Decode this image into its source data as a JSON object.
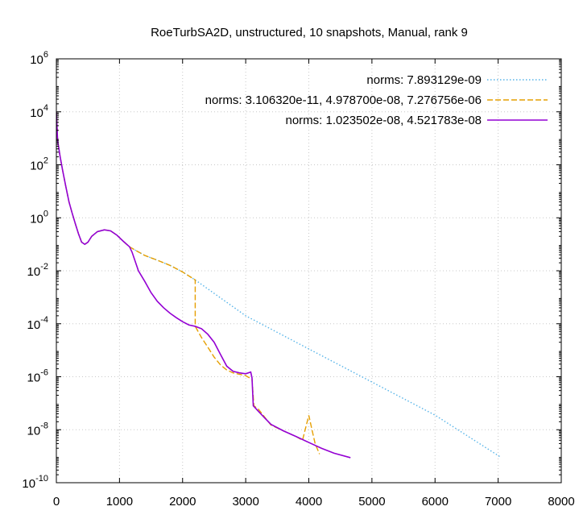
{
  "chart_data": {
    "type": "line",
    "title": "RoeTurbSA2D, unstructured, 10 snapshots, Manual, rank 9",
    "xlabel": "",
    "ylabel": "",
    "xlim": [
      0,
      8000
    ],
    "ylim_exponents": [
      -10,
      6
    ],
    "y_scale": "log",
    "grid": true,
    "legend_position": "top-right",
    "x_ticks": [
      "0",
      "1000",
      "2000",
      "3000",
      "4000",
      "5000",
      "6000",
      "7000",
      "8000"
    ],
    "y_ticks": [
      {
        "base": "10",
        "exp": "6"
      },
      {
        "base": "10",
        "exp": "4"
      },
      {
        "base": "10",
        "exp": "2"
      },
      {
        "base": "10",
        "exp": "0"
      },
      {
        "base": "10",
        "exp": "-2"
      },
      {
        "base": "10",
        "exp": "-4"
      },
      {
        "base": "10",
        "exp": "-6"
      },
      {
        "base": "10",
        "exp": "-8"
      },
      {
        "base": "10",
        "exp": "-10"
      }
    ],
    "series": [
      {
        "name": "norms: 7.893129e-09",
        "color": "#56b4e9",
        "style": "dotted",
        "points": [
          [
            0,
            10000
          ],
          [
            20,
            800
          ],
          [
            60,
            200
          ],
          [
            100,
            60
          ],
          [
            150,
            15
          ],
          [
            200,
            4
          ],
          [
            250,
            1.5
          ],
          [
            300,
            0.6
          ],
          [
            350,
            0.25
          ],
          [
            400,
            0.12
          ],
          [
            450,
            0.1
          ],
          [
            500,
            0.12
          ],
          [
            560,
            0.2
          ],
          [
            650,
            0.3
          ],
          [
            760,
            0.35
          ],
          [
            860,
            0.32
          ],
          [
            960,
            0.22
          ],
          [
            1060,
            0.13
          ],
          [
            1160,
            0.08
          ],
          [
            1250,
            0.06
          ],
          [
            1400,
            0.038
          ],
          [
            1600,
            0.025
          ],
          [
            1800,
            0.016
          ],
          [
            2000,
            0.009
          ],
          [
            2200,
            0.0045
          ],
          [
            3000,
            0.0002
          ],
          [
            4000,
            1.12e-05
          ],
          [
            5000,
            6.3e-07
          ],
          [
            6000,
            3.55e-08
          ],
          [
            7050,
            8.9e-10
          ]
        ]
      },
      {
        "name": "norms: 3.106320e-11, 4.978700e-08, 7.276756e-06",
        "color": "#e69f00",
        "style": "dashed",
        "points": [
          [
            0,
            10000
          ],
          [
            20,
            800
          ],
          [
            60,
            200
          ],
          [
            100,
            60
          ],
          [
            150,
            15
          ],
          [
            200,
            4
          ],
          [
            250,
            1.5
          ],
          [
            300,
            0.6
          ],
          [
            350,
            0.25
          ],
          [
            400,
            0.12
          ],
          [
            450,
            0.1
          ],
          [
            500,
            0.12
          ],
          [
            560,
            0.2
          ],
          [
            650,
            0.3
          ],
          [
            760,
            0.35
          ],
          [
            860,
            0.32
          ],
          [
            960,
            0.22
          ],
          [
            1060,
            0.13
          ],
          [
            1160,
            0.08
          ],
          [
            1250,
            0.06
          ],
          [
            1400,
            0.038
          ],
          [
            1600,
            0.025
          ],
          [
            1800,
            0.016
          ],
          [
            2000,
            0.009
          ],
          [
            2200,
            0.0045
          ],
          [
            2200,
            8e-05
          ],
          [
            2300,
            3e-05
          ],
          [
            2400,
            1.3e-05
          ],
          [
            2500,
            5.5e-06
          ],
          [
            2600,
            2.8e-06
          ],
          [
            2700,
            1.8e-06
          ],
          [
            2800,
            1.4e-06
          ],
          [
            3000,
            1.1e-06
          ],
          [
            3100,
            8e-07
          ],
          [
            3130,
            8e-08
          ],
          [
            3200,
            6e-08
          ],
          [
            3300,
            3e-08
          ],
          [
            3400,
            1.5e-08
          ],
          [
            3600,
            9e-09
          ],
          [
            3800,
            5.5e-09
          ],
          [
            3900,
            4e-09
          ],
          [
            4000,
            3.5e-08
          ],
          [
            4050,
            1e-08
          ],
          [
            4100,
            3e-09
          ],
          [
            4170,
            1.2e-09
          ]
        ]
      },
      {
        "name": "norms: 1.023502e-08, 4.521783e-08",
        "color": "#9400d3",
        "style": "solid",
        "points": [
          [
            0,
            10000
          ],
          [
            20,
            800
          ],
          [
            60,
            200
          ],
          [
            100,
            60
          ],
          [
            150,
            15
          ],
          [
            200,
            4
          ],
          [
            250,
            1.5
          ],
          [
            300,
            0.6
          ],
          [
            350,
            0.25
          ],
          [
            400,
            0.12
          ],
          [
            450,
            0.1
          ],
          [
            500,
            0.12
          ],
          [
            560,
            0.2
          ],
          [
            650,
            0.3
          ],
          [
            760,
            0.35
          ],
          [
            860,
            0.32
          ],
          [
            960,
            0.22
          ],
          [
            1060,
            0.13
          ],
          [
            1160,
            0.08
          ],
          [
            1200,
            0.05
          ],
          [
            1300,
            0.01
          ],
          [
            1400,
            0.004
          ],
          [
            1500,
            0.0015
          ],
          [
            1600,
            0.0007
          ],
          [
            1700,
            0.0004
          ],
          [
            1800,
            0.00025
          ],
          [
            1900,
            0.00017
          ],
          [
            2000,
            0.00012
          ],
          [
            2100,
            9e-05
          ],
          [
            2200,
            8e-05
          ],
          [
            2300,
            6.5e-05
          ],
          [
            2400,
            4e-05
          ],
          [
            2500,
            2e-05
          ],
          [
            2600,
            7e-06
          ],
          [
            2700,
            2.5e-06
          ],
          [
            2800,
            1.6e-06
          ],
          [
            2900,
            1.4e-06
          ],
          [
            3000,
            1.3e-06
          ],
          [
            3080,
            1.5e-06
          ],
          [
            3100,
            9e-07
          ],
          [
            3120,
            8e-08
          ],
          [
            3200,
            5e-08
          ],
          [
            3300,
            2.8e-08
          ],
          [
            3400,
            1.6e-08
          ],
          [
            3600,
            9e-09
          ],
          [
            3800,
            5.5e-09
          ],
          [
            4000,
            3.3e-09
          ],
          [
            4200,
            2e-09
          ],
          [
            4400,
            1.3e-09
          ],
          [
            4660,
            8.8e-10
          ]
        ]
      }
    ]
  }
}
